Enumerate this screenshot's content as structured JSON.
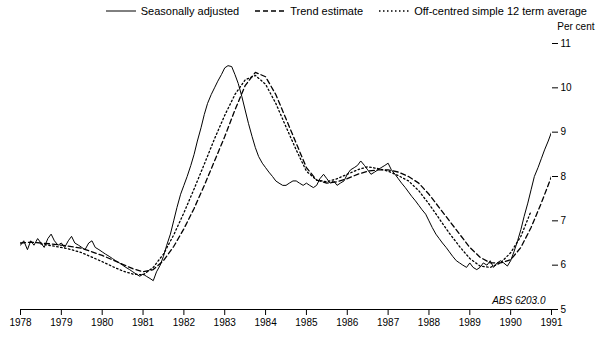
{
  "chart_data": {
    "type": "line",
    "ylabel": "Per cent",
    "annotation": "ABS 6203.0",
    "xlim": [
      1978,
      1991
    ],
    "xticks": [
      1978,
      1979,
      1980,
      1981,
      1982,
      1983,
      1984,
      1985,
      1986,
      1987,
      1988,
      1989,
      1990,
      1991
    ],
    "ylim": [
      5,
      11
    ],
    "yticks": [
      5,
      6,
      7,
      8,
      9,
      10,
      11
    ],
    "grid": false,
    "legend": "upper right",
    "series": [
      {
        "name": "Seasonally adjusted",
        "color": "#000000",
        "line_style": "solid",
        "x": [
          1978.0,
          1978.08,
          1978.17,
          1978.25,
          1978.33,
          1978.42,
          1978.5,
          1978.58,
          1978.67,
          1978.75,
          1978.83,
          1978.92,
          1979.0,
          1979.08,
          1979.17,
          1979.25,
          1979.33,
          1979.42,
          1979.5,
          1979.58,
          1979.67,
          1979.75,
          1979.83,
          1979.92,
          1980.0,
          1980.08,
          1980.17,
          1980.25,
          1980.33,
          1980.42,
          1980.5,
          1980.58,
          1980.67,
          1980.75,
          1980.83,
          1980.92,
          1981.0,
          1981.08,
          1981.17,
          1981.25,
          1981.33,
          1981.42,
          1981.5,
          1981.58,
          1981.67,
          1981.75,
          1981.83,
          1981.92,
          1982.0,
          1982.08,
          1982.17,
          1982.25,
          1982.33,
          1982.42,
          1982.5,
          1982.58,
          1982.67,
          1982.75,
          1982.83,
          1982.92,
          1983.0,
          1983.08,
          1983.17,
          1983.25,
          1983.33,
          1983.42,
          1983.5,
          1983.58,
          1983.67,
          1983.75,
          1983.83,
          1983.92,
          1984.0,
          1984.08,
          1984.17,
          1984.25,
          1984.33,
          1984.42,
          1984.5,
          1984.58,
          1984.67,
          1984.75,
          1984.83,
          1984.92,
          1985.0,
          1985.08,
          1985.17,
          1985.25,
          1985.33,
          1985.42,
          1985.5,
          1985.58,
          1985.67,
          1985.75,
          1985.83,
          1985.92,
          1986.0,
          1986.08,
          1986.17,
          1986.25,
          1986.33,
          1986.42,
          1986.5,
          1986.58,
          1986.67,
          1986.75,
          1986.83,
          1986.92,
          1987.0,
          1987.08,
          1987.17,
          1987.25,
          1987.33,
          1987.42,
          1987.5,
          1987.58,
          1987.67,
          1987.75,
          1987.83,
          1987.92,
          1988.0,
          1988.08,
          1988.17,
          1988.25,
          1988.33,
          1988.42,
          1988.5,
          1988.58,
          1988.67,
          1988.75,
          1988.83,
          1988.92,
          1989.0,
          1989.08,
          1989.17,
          1989.25,
          1989.33,
          1989.42,
          1989.5,
          1989.58,
          1989.67,
          1989.75,
          1989.83,
          1989.92,
          1990.0,
          1990.08,
          1990.17,
          1990.25,
          1990.33,
          1990.42,
          1990.5,
          1990.58,
          1990.67,
          1990.75,
          1990.83,
          1990.92,
          1991.0
        ],
        "values": [
          6.45,
          6.55,
          6.35,
          6.55,
          6.45,
          6.6,
          6.5,
          6.4,
          6.6,
          6.7,
          6.55,
          6.45,
          6.5,
          6.4,
          6.55,
          6.65,
          6.5,
          6.45,
          6.4,
          6.35,
          6.5,
          6.55,
          6.4,
          6.35,
          6.3,
          6.25,
          6.2,
          6.15,
          6.1,
          6.05,
          6.0,
          5.95,
          5.9,
          5.85,
          5.8,
          5.75,
          5.8,
          5.75,
          5.7,
          5.65,
          5.85,
          6.0,
          6.2,
          6.45,
          6.7,
          7.0,
          7.3,
          7.6,
          7.8,
          8.0,
          8.25,
          8.5,
          8.8,
          9.1,
          9.4,
          9.65,
          9.85,
          10.0,
          10.15,
          10.3,
          10.45,
          10.5,
          10.48,
          10.3,
          10.1,
          9.8,
          9.5,
          9.2,
          8.9,
          8.65,
          8.45,
          8.3,
          8.2,
          8.1,
          8.0,
          7.9,
          7.85,
          7.8,
          7.8,
          7.85,
          7.9,
          7.9,
          7.85,
          7.8,
          7.85,
          7.8,
          7.75,
          7.8,
          7.95,
          8.05,
          7.95,
          7.85,
          7.9,
          7.8,
          7.85,
          7.9,
          8.05,
          8.15,
          8.2,
          8.25,
          8.35,
          8.25,
          8.15,
          8.05,
          8.1,
          8.15,
          8.2,
          8.25,
          8.3,
          8.15,
          8.05,
          7.95,
          7.85,
          7.75,
          7.65,
          7.55,
          7.45,
          7.35,
          7.25,
          7.15,
          7.0,
          6.85,
          6.7,
          6.6,
          6.5,
          6.4,
          6.3,
          6.2,
          6.1,
          6.05,
          6.0,
          5.95,
          6.05,
          5.95,
          5.9,
          5.95,
          6.05,
          6.0,
          6.1,
          5.95,
          6.05,
          6.1,
          6.05,
          5.98,
          6.1,
          6.3,
          6.55,
          6.8,
          7.1,
          7.4,
          7.7,
          8.0,
          8.2,
          8.4,
          8.6,
          8.8,
          9.0
        ]
      },
      {
        "name": "Trend estimate",
        "color": "#000000",
        "line_style": "dashed",
        "x": [
          1978.0,
          1978.25,
          1978.5,
          1978.75,
          1979.0,
          1979.25,
          1979.5,
          1979.75,
          1980.0,
          1980.25,
          1980.5,
          1980.75,
          1981.0,
          1981.25,
          1981.5,
          1981.75,
          1982.0,
          1982.25,
          1982.5,
          1982.75,
          1983.0,
          1983.25,
          1983.5,
          1983.75,
          1984.0,
          1984.25,
          1984.5,
          1984.75,
          1985.0,
          1985.25,
          1985.5,
          1985.75,
          1986.0,
          1986.25,
          1986.5,
          1986.75,
          1987.0,
          1987.25,
          1987.5,
          1987.75,
          1988.0,
          1988.25,
          1988.5,
          1988.75,
          1989.0,
          1989.25,
          1989.5,
          1989.75,
          1990.0,
          1990.25,
          1990.5,
          1990.75,
          1991.0
        ],
        "values": [
          6.5,
          6.52,
          6.5,
          6.48,
          6.45,
          6.42,
          6.38,
          6.3,
          6.22,
          6.12,
          6.02,
          5.92,
          5.85,
          5.9,
          6.1,
          6.42,
          6.82,
          7.28,
          7.8,
          8.35,
          8.9,
          9.5,
          10.05,
          10.35,
          10.25,
          9.85,
          9.3,
          8.75,
          8.2,
          7.92,
          7.85,
          7.88,
          7.95,
          8.05,
          8.12,
          8.15,
          8.15,
          8.1,
          8.0,
          7.85,
          7.6,
          7.3,
          7.0,
          6.7,
          6.4,
          6.18,
          6.05,
          6.05,
          6.12,
          6.4,
          6.85,
          7.4,
          8.0
        ]
      },
      {
        "name": "Off-centred simple 12 term average",
        "color": "#000000",
        "line_style": "dotted",
        "x": [
          1978.5,
          1978.75,
          1979.0,
          1979.25,
          1979.5,
          1979.75,
          1980.0,
          1980.25,
          1980.5,
          1980.75,
          1981.0,
          1981.25,
          1981.5,
          1981.75,
          1982.0,
          1982.25,
          1982.5,
          1982.75,
          1983.0,
          1983.25,
          1983.5,
          1983.75,
          1984.0,
          1984.25,
          1984.5,
          1984.75,
          1985.0,
          1985.25,
          1985.5,
          1985.75,
          1986.0,
          1986.25,
          1986.5,
          1986.75,
          1987.0,
          1987.25,
          1987.5,
          1987.75,
          1988.0,
          1988.25,
          1988.5,
          1988.75,
          1989.0,
          1989.25,
          1989.5,
          1989.75,
          1990.0,
          1990.25,
          1990.5
        ],
        "values": [
          6.48,
          6.44,
          6.4,
          6.35,
          6.28,
          6.18,
          6.08,
          5.97,
          5.87,
          5.8,
          5.78,
          5.95,
          6.25,
          6.68,
          7.18,
          7.72,
          8.28,
          8.85,
          9.38,
          9.85,
          10.18,
          10.28,
          10.08,
          9.65,
          9.12,
          8.6,
          8.12,
          7.92,
          7.88,
          7.95,
          8.05,
          8.15,
          8.22,
          8.18,
          8.12,
          8.02,
          7.9,
          7.68,
          7.38,
          7.05,
          6.72,
          6.42,
          6.15,
          5.98,
          5.95,
          6.05,
          6.28,
          6.65,
          7.22
        ]
      }
    ]
  }
}
